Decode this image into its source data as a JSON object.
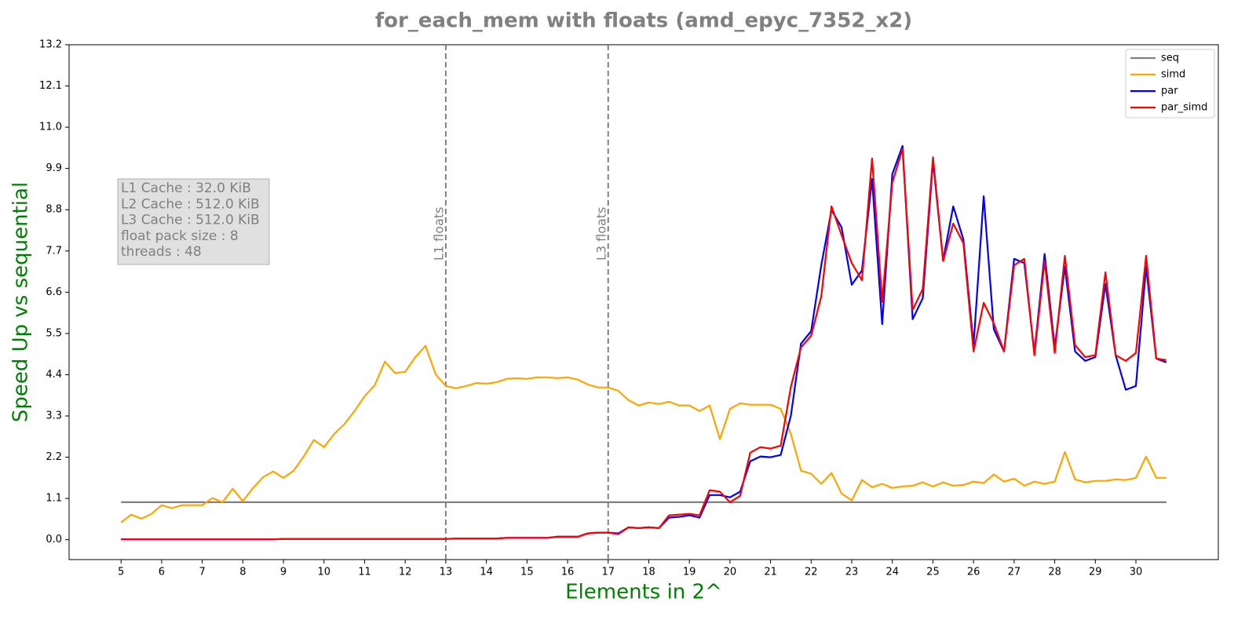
{
  "chart_data": {
    "type": "line",
    "title": "for_each_mem with floats  (amd_epyc_7352_x2)",
    "xlabel": "Elements in 2^",
    "ylabel": "Speed Up vs sequential",
    "annotation_lines": [
      "L1 Cache : 32.0 KiB",
      "L2 Cache : 512.0 KiB",
      "L3 Cache : 512.0 KiB",
      "float pack size : 8",
      "threads : 48"
    ],
    "vlines": [
      {
        "x": 13,
        "label": "L1 floats"
      },
      {
        "x": 17,
        "label": "L3 floats"
      }
    ],
    "vline_color": "#808080",
    "legend": "upper right",
    "x": [
      5,
      5.25,
      5.5,
      5.75,
      6,
      6.25,
      6.5,
      6.75,
      7,
      7.25,
      7.5,
      7.75,
      8,
      8.25,
      8.5,
      8.75,
      9,
      9.25,
      9.5,
      9.75,
      10,
      10.25,
      10.5,
      10.75,
      11,
      11.25,
      11.5,
      11.75,
      12,
      12.25,
      12.5,
      12.75,
      13,
      13.25,
      13.5,
      13.75,
      14,
      14.25,
      14.5,
      14.75,
      15,
      15.25,
      15.5,
      15.75,
      16,
      16.25,
      16.5,
      16.75,
      17,
      17.25,
      17.5,
      17.75,
      18,
      18.25,
      18.5,
      18.75,
      19,
      19.25,
      19.5,
      19.75,
      20,
      20.25,
      20.5,
      20.75,
      21,
      21.25,
      21.5,
      21.75,
      22,
      22.25,
      22.5,
      22.75,
      23,
      23.25,
      23.5,
      23.75,
      24,
      24.25,
      24.5,
      24.75,
      25,
      25.25,
      25.5,
      25.75,
      26,
      26.25,
      26.5,
      26.75,
      27,
      27.25,
      27.5,
      27.75,
      28,
      28.25,
      28.5,
      28.75,
      29,
      29.25,
      29.5,
      29.75,
      30,
      30.25,
      30.5,
      30.75
    ],
    "series": [
      {
        "name": "seq",
        "color": "#808080",
        "values": [
          1,
          1,
          1,
          1,
          1,
          1,
          1,
          1,
          1,
          1,
          1,
          1,
          1,
          1,
          1,
          1,
          1,
          1,
          1,
          1,
          1,
          1,
          1,
          1,
          1,
          1,
          1,
          1,
          1,
          1,
          1,
          1,
          1,
          1,
          1,
          1,
          1,
          1,
          1,
          1,
          1,
          1,
          1,
          1,
          1,
          1,
          1,
          1,
          1,
          1,
          1,
          1,
          1,
          1,
          1,
          1,
          1,
          1,
          1,
          1,
          1,
          1,
          1,
          1,
          1,
          1,
          1,
          1,
          1,
          1,
          1,
          1,
          1,
          1,
          1,
          1,
          1,
          1,
          1,
          1,
          1,
          1,
          1,
          1,
          1,
          1,
          1,
          1,
          1,
          1,
          1,
          1,
          1,
          1,
          1,
          1,
          1,
          1,
          1,
          1,
          1,
          1,
          1,
          1
        ]
      },
      {
        "name": "simd",
        "color": "#ffa500",
        "values": [
          0.46,
          0.67,
          0.56,
          0.69,
          0.92,
          0.84,
          0.92,
          0.92,
          0.92,
          1.11,
          1.0,
          1.36,
          1.03,
          1.38,
          1.67,
          1.82,
          1.65,
          1.84,
          2.22,
          2.66,
          2.47,
          2.82,
          3.08,
          3.43,
          3.83,
          4.12,
          4.75,
          4.44,
          4.48,
          4.87,
          5.17,
          4.41,
          4.1,
          4.04,
          4.1,
          4.18,
          4.16,
          4.2,
          4.29,
          4.31,
          4.29,
          4.33,
          4.33,
          4.31,
          4.33,
          4.27,
          4.14,
          4.06,
          4.06,
          3.97,
          3.72,
          3.58,
          3.66,
          3.62,
          3.68,
          3.58,
          3.58,
          3.43,
          3.58,
          2.68,
          3.49,
          3.64,
          3.6,
          3.6,
          3.6,
          3.49,
          2.82,
          1.84,
          1.76,
          1.49,
          1.78,
          1.23,
          1.05,
          1.59,
          1.4,
          1.49,
          1.38,
          1.42,
          1.44,
          1.53,
          1.42,
          1.53,
          1.44,
          1.46,
          1.55,
          1.51,
          1.74,
          1.55,
          1.63,
          1.44,
          1.55,
          1.49,
          1.55,
          2.34,
          1.61,
          1.53,
          1.57,
          1.57,
          1.61,
          1.59,
          1.65,
          2.22,
          1.65,
          1.65
        ]
      },
      {
        "name": "par",
        "color": "#0000ff",
        "values": [
          0.01,
          0.01,
          0.01,
          0.01,
          0.01,
          0.01,
          0.01,
          0.01,
          0.01,
          0.01,
          0.01,
          0.01,
          0.01,
          0.01,
          0.01,
          0.01,
          0.02,
          0.02,
          0.02,
          0.02,
          0.02,
          0.02,
          0.02,
          0.02,
          0.02,
          0.02,
          0.02,
          0.02,
          0.02,
          0.02,
          0.02,
          0.02,
          0.02,
          0.03,
          0.03,
          0.03,
          0.03,
          0.03,
          0.05,
          0.05,
          0.05,
          0.05,
          0.05,
          0.08,
          0.08,
          0.08,
          0.17,
          0.19,
          0.19,
          0.17,
          0.33,
          0.31,
          0.33,
          0.31,
          0.59,
          0.61,
          0.65,
          0.59,
          1.19,
          1.19,
          1.13,
          1.28,
          2.09,
          2.22,
          2.2,
          2.26,
          3.31,
          5.23,
          5.56,
          7.32,
          8.79,
          8.33,
          6.8,
          7.18,
          9.62,
          5.75,
          9.75,
          10.5,
          5.88,
          6.44,
          10.1,
          7.45,
          8.89,
          8.01,
          5.19,
          9.16,
          5.61,
          5.02,
          7.49,
          7.38,
          4.98,
          7.62,
          5.13,
          7.28,
          5.02,
          4.77,
          4.87,
          6.82,
          4.92,
          4.0,
          4.1,
          7.28,
          4.83,
          4.73
        ]
      },
      {
        "name": "par_simd",
        "color": "#ff0000",
        "values": [
          0.01,
          0.01,
          0.01,
          0.01,
          0.01,
          0.01,
          0.01,
          0.01,
          0.01,
          0.01,
          0.01,
          0.01,
          0.01,
          0.01,
          0.01,
          0.01,
          0.02,
          0.02,
          0.02,
          0.02,
          0.02,
          0.02,
          0.02,
          0.02,
          0.02,
          0.02,
          0.02,
          0.02,
          0.02,
          0.02,
          0.02,
          0.02,
          0.02,
          0.03,
          0.03,
          0.03,
          0.03,
          0.03,
          0.05,
          0.05,
          0.05,
          0.05,
          0.05,
          0.08,
          0.08,
          0.08,
          0.17,
          0.19,
          0.19,
          0.15,
          0.33,
          0.31,
          0.33,
          0.31,
          0.65,
          0.67,
          0.69,
          0.65,
          1.32,
          1.28,
          1.0,
          1.17,
          2.32,
          2.47,
          2.43,
          2.51,
          4.08,
          5.13,
          5.44,
          6.49,
          8.89,
          8.12,
          7.38,
          6.92,
          10.17,
          6.34,
          9.52,
          10.42,
          6.13,
          6.69,
          10.2,
          7.43,
          8.43,
          7.91,
          5.02,
          6.32,
          5.77,
          5.02,
          7.32,
          7.49,
          4.92,
          7.43,
          4.98,
          7.57,
          5.19,
          4.87,
          4.92,
          7.13,
          4.92,
          4.77,
          4.98,
          7.57,
          4.83,
          4.79
        ]
      }
    ],
    "xlim": [
      3.72,
      32.03
    ],
    "xticks": [
      5,
      6,
      7,
      8,
      9,
      10,
      11,
      12,
      13,
      14,
      15,
      16,
      17,
      18,
      19,
      20,
      21,
      22,
      23,
      24,
      25,
      26,
      27,
      28,
      29,
      30
    ],
    "ylim": [
      -0.53,
      13.2
    ],
    "yticks": [
      {
        "value": 0,
        "label": "0.0"
      },
      1.1,
      2.2,
      3.3,
      4.4,
      5.5,
      6.6,
      7.7,
      8.8,
      9.9,
      {
        "value": 11,
        "label": "11.0"
      },
      12.1,
      13.2
    ]
  }
}
